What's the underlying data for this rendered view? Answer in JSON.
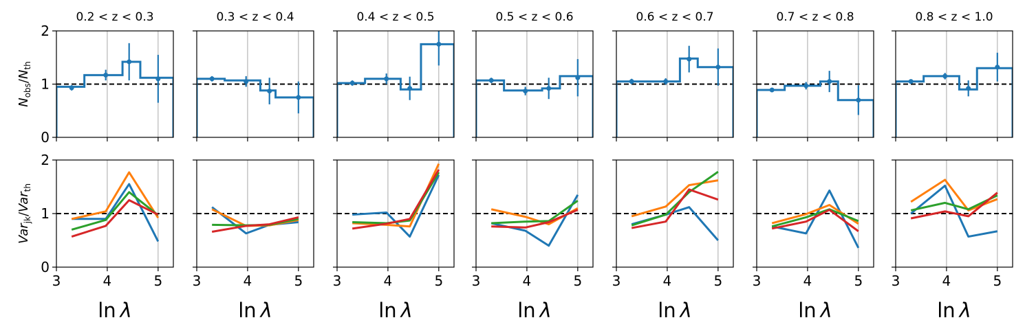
{
  "figure": {
    "row_labels": {
      "top": {
        "main": "N",
        "sub": "obs",
        "sep": "/",
        "main2": "N",
        "sub2": "th"
      },
      "bottom": {
        "main": "Var",
        "sub": "jk",
        "sep": "/",
        "main2": "Var",
        "sub2": "th"
      }
    },
    "xlabel": {
      "main": "ln",
      "var": "λ"
    },
    "xticks": [
      3,
      4,
      5
    ],
    "yticks": [
      0,
      1,
      2
    ],
    "xlim": [
      3.0,
      5.3
    ],
    "ylim": [
      0,
      2
    ],
    "reference_line": 1,
    "colors": {
      "step": "#1f77b4",
      "line1": "#1f77b4",
      "line2": "#ff7f0e",
      "line3": "#2ca02c",
      "line4": "#d62728",
      "ref": "#000000",
      "grid": "#b0b0b0"
    }
  },
  "chart_data": [
    {
      "panel": "0.2 < z < 0.3",
      "type": "step",
      "title": "0.2 < z < 0.3",
      "bin_edges": [
        3.0,
        3.55,
        3.9,
        4.3,
        4.65,
        5.3
      ],
      "ratio": [
        0.95,
        1.17,
        1.17,
        1.42,
        1.12
      ],
      "points": [
        {
          "x": 3.3,
          "y": 0.93,
          "err": 0.05
        },
        {
          "x": 3.97,
          "y": 1.17,
          "err": 0.1
        },
        {
          "x": 4.43,
          "y": 1.42,
          "err": 0.35
        },
        {
          "x": 5.0,
          "y": 1.1,
          "err": 0.45
        }
      ],
      "variance": [
        [
          3.3,
          0.9,
          3.97,
          0.9,
          4.43,
          1.55,
          5.0,
          0.48
        ],
        [
          3.3,
          0.9,
          3.97,
          1.04,
          4.43,
          1.77,
          5.0,
          0.92
        ],
        [
          3.3,
          0.7,
          3.97,
          0.88,
          4.43,
          1.4,
          5.0,
          0.97
        ],
        [
          3.3,
          0.57,
          3.97,
          0.77,
          4.43,
          1.25,
          5.0,
          0.98
        ]
      ]
    },
    {
      "panel": "0.3 < z < 0.4",
      "type": "step",
      "title": "0.3 < z < 0.4",
      "bin_edges": [
        3.0,
        3.55,
        3.9,
        4.25,
        4.55,
        5.3
      ],
      "ratio": [
        1.1,
        1.07,
        1.07,
        0.88,
        0.75
      ],
      "points": [
        {
          "x": 3.3,
          "y": 1.1,
          "err": 0.05
        },
        {
          "x": 3.97,
          "y": 1.05,
          "err": 0.1
        },
        {
          "x": 4.43,
          "y": 0.87,
          "err": 0.25
        },
        {
          "x": 5.0,
          "y": 0.75,
          "err": 0.3
        }
      ],
      "variance": [
        [
          3.3,
          1.12,
          3.97,
          0.63,
          4.43,
          0.79,
          5.0,
          0.84
        ],
        [
          3.3,
          1.08,
          3.97,
          0.77,
          4.43,
          0.78,
          5.0,
          0.88
        ],
        [
          3.3,
          0.79,
          3.97,
          0.78,
          4.43,
          0.79,
          5.0,
          0.9
        ],
        [
          3.3,
          0.66,
          3.97,
          0.77,
          4.43,
          0.8,
          5.0,
          0.93
        ]
      ]
    },
    {
      "panel": "0.4 < z < 0.5",
      "type": "step",
      "title": "0.4 < z < 0.5",
      "bin_edges": [
        3.0,
        3.55,
        3.9,
        4.25,
        4.65,
        5.3
      ],
      "ratio": [
        1.02,
        1.1,
        1.1,
        0.9,
        1.75
      ],
      "points": [
        {
          "x": 3.3,
          "y": 1.02,
          "err": 0.05
        },
        {
          "x": 3.97,
          "y": 1.1,
          "err": 0.1
        },
        {
          "x": 4.43,
          "y": 0.92,
          "err": 0.22
        },
        {
          "x": 5.0,
          "y": 1.75,
          "err": 0.4
        }
      ],
      "variance": [
        [
          3.3,
          0.98,
          3.97,
          1.02,
          4.43,
          0.57,
          5.0,
          1.72
        ],
        [
          3.3,
          0.82,
          3.97,
          0.79,
          4.43,
          0.76,
          5.0,
          1.93
        ],
        [
          3.3,
          0.84,
          3.97,
          0.82,
          4.43,
          0.87,
          5.0,
          1.77
        ],
        [
          3.3,
          0.72,
          3.97,
          0.81,
          4.43,
          0.9,
          5.0,
          1.82
        ]
      ]
    },
    {
      "panel": "0.5 < z < 0.6",
      "type": "step",
      "title": "0.5 < z < 0.6",
      "bin_edges": [
        3.0,
        3.55,
        3.9,
        4.3,
        4.65,
        5.3
      ],
      "ratio": [
        1.07,
        0.88,
        0.88,
        0.92,
        1.15
      ],
      "points": [
        {
          "x": 3.3,
          "y": 1.07,
          "err": 0.05
        },
        {
          "x": 3.97,
          "y": 0.87,
          "err": 0.08
        },
        {
          "x": 4.43,
          "y": 0.92,
          "err": 0.2
        },
        {
          "x": 5.0,
          "y": 1.12,
          "err": 0.35
        }
      ],
      "variance": [
        [
          3.3,
          0.82,
          3.97,
          0.68,
          4.43,
          0.4,
          5.0,
          1.35
        ],
        [
          3.3,
          1.08,
          3.97,
          0.94,
          4.43,
          0.8,
          5.0,
          1.1
        ],
        [
          3.3,
          0.82,
          3.97,
          0.85,
          4.43,
          0.86,
          5.0,
          1.24
        ],
        [
          3.3,
          0.76,
          3.97,
          0.74,
          4.43,
          0.84,
          5.0,
          1.07
        ]
      ]
    },
    {
      "panel": "0.6 < z < 0.7",
      "type": "step",
      "title": "0.6 < z < 0.7",
      "bin_edges": [
        3.0,
        3.55,
        3.9,
        4.25,
        4.6,
        5.3
      ],
      "ratio": [
        1.05,
        1.05,
        1.05,
        1.48,
        1.32
      ],
      "points": [
        {
          "x": 3.3,
          "y": 1.05,
          "err": 0.05
        },
        {
          "x": 3.97,
          "y": 1.05,
          "err": 0.06
        },
        {
          "x": 4.43,
          "y": 1.47,
          "err": 0.25
        },
        {
          "x": 5.0,
          "y": 1.32,
          "err": 0.35
        }
      ],
      "variance": [
        [
          3.3,
          0.8,
          3.97,
          0.98,
          4.43,
          1.12,
          5.0,
          0.5
        ],
        [
          3.3,
          0.95,
          3.97,
          1.13,
          4.43,
          1.53,
          5.0,
          1.62
        ],
        [
          3.3,
          0.78,
          3.97,
          0.98,
          4.43,
          1.4,
          5.0,
          1.78
        ],
        [
          3.3,
          0.73,
          3.97,
          0.85,
          4.43,
          1.45,
          5.0,
          1.26
        ]
      ]
    },
    {
      "panel": "0.7 < z < 0.8",
      "type": "step",
      "title": "0.7 < z < 0.8",
      "bin_edges": [
        3.0,
        3.55,
        3.9,
        4.25,
        4.6,
        5.3
      ],
      "ratio": [
        0.89,
        0.97,
        0.97,
        1.05,
        0.7
      ],
      "points": [
        {
          "x": 3.3,
          "y": 0.89,
          "err": 0.04
        },
        {
          "x": 3.97,
          "y": 0.97,
          "err": 0.07
        },
        {
          "x": 4.43,
          "y": 1.05,
          "err": 0.2
        },
        {
          "x": 5.0,
          "y": 0.7,
          "err": 0.28
        }
      ],
      "variance": [
        [
          3.3,
          0.76,
          3.97,
          0.63,
          4.43,
          1.43,
          5.0,
          0.36
        ],
        [
          3.3,
          0.82,
          3.97,
          0.99,
          4.43,
          1.16,
          5.0,
          0.81
        ],
        [
          3.3,
          0.76,
          3.97,
          0.93,
          4.43,
          1.08,
          5.0,
          0.86
        ],
        [
          3.3,
          0.72,
          3.97,
          0.85,
          4.43,
          1.07,
          5.0,
          0.67
        ]
      ]
    },
    {
      "panel": "0.8 < z < 1.0",
      "type": "step",
      "title": "0.8 < z < 1.0",
      "bin_edges": [
        3.0,
        3.55,
        3.9,
        4.25,
        4.6,
        5.3
      ],
      "ratio": [
        1.05,
        1.15,
        1.15,
        0.9,
        1.3
      ],
      "points": [
        {
          "x": 3.3,
          "y": 1.05,
          "err": 0.04
        },
        {
          "x": 3.97,
          "y": 1.15,
          "err": 0.06
        },
        {
          "x": 4.43,
          "y": 0.92,
          "err": 0.15
        },
        {
          "x": 5.0,
          "y": 1.32,
          "err": 0.27
        }
      ],
      "variance": [
        [
          3.3,
          1.0,
          3.97,
          1.52,
          4.43,
          0.57,
          5.0,
          0.67
        ],
        [
          3.3,
          1.22,
          3.97,
          1.63,
          4.43,
          1.06,
          5.0,
          1.27
        ],
        [
          3.3,
          1.06,
          3.97,
          1.2,
          4.43,
          1.08,
          5.0,
          1.34
        ],
        [
          3.3,
          0.91,
          3.97,
          1.04,
          4.43,
          0.95,
          5.0,
          1.39
        ]
      ]
    }
  ]
}
